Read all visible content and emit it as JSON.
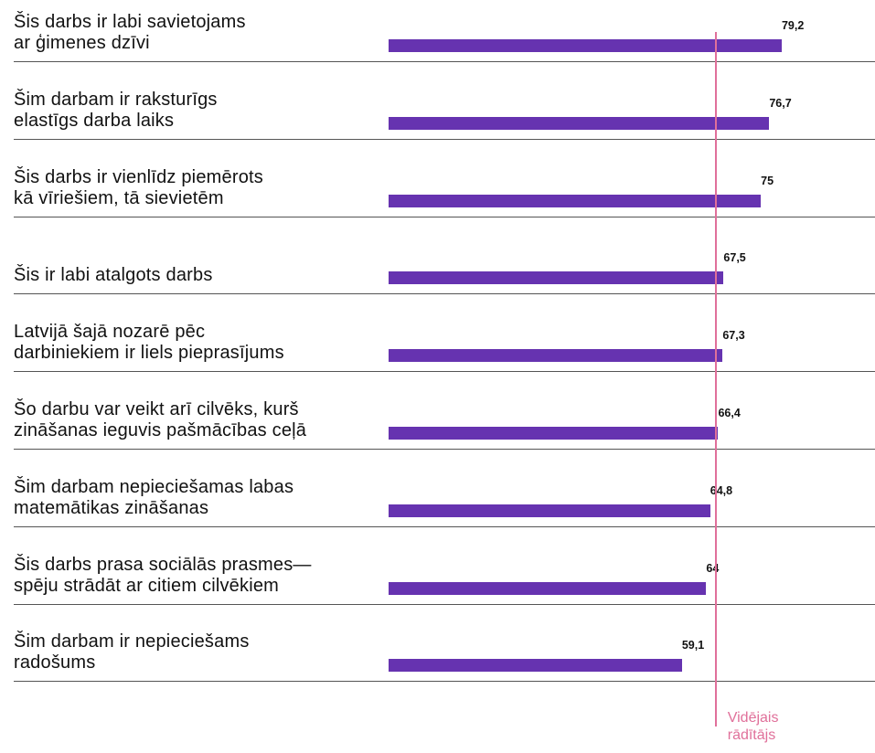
{
  "chart_data": {
    "type": "bar",
    "orientation": "horizontal",
    "categories": [
      "Šis darbs ir labi savietojams\nar ģimenes dzīvi",
      "Šim darbam ir raksturīgs\nelastīgs darba laiks",
      "Šis darbs ir vienlīdz piemērots\nkā vīriešiem, tā sievietēm",
      "Šis ir labi atalgots darbs",
      "Latvijā šajā nozarē pēc\ndarbiniekiem ir liels pieprasījums",
      "Šo darbu var veikt arī cilvēks, kurš\nzināšanas ieguvis pašmācības ceļā",
      "Šim darbam nepieciešamas labas\nmatemātikas zināšanas",
      "Šis darbs prasa sociālās prasmes—\nspēju strādāt ar citiem cilvēkiem",
      "Šim darbam ir nepieciešams\nradošums"
    ],
    "values": [
      79.2,
      76.7,
      75,
      67.5,
      67.3,
      66.4,
      64.8,
      64,
      59.1
    ],
    "value_labels": [
      "79,2",
      "76,7",
      "75",
      "67,5",
      "67,3",
      "66,4",
      "64,8",
      "64",
      "59,1"
    ],
    "color": "#6633b0",
    "xlim": [
      0,
      98
    ],
    "average": {
      "label": "Vidējais\nrādītājs",
      "value": 65.9,
      "color": "#e0709a"
    }
  }
}
